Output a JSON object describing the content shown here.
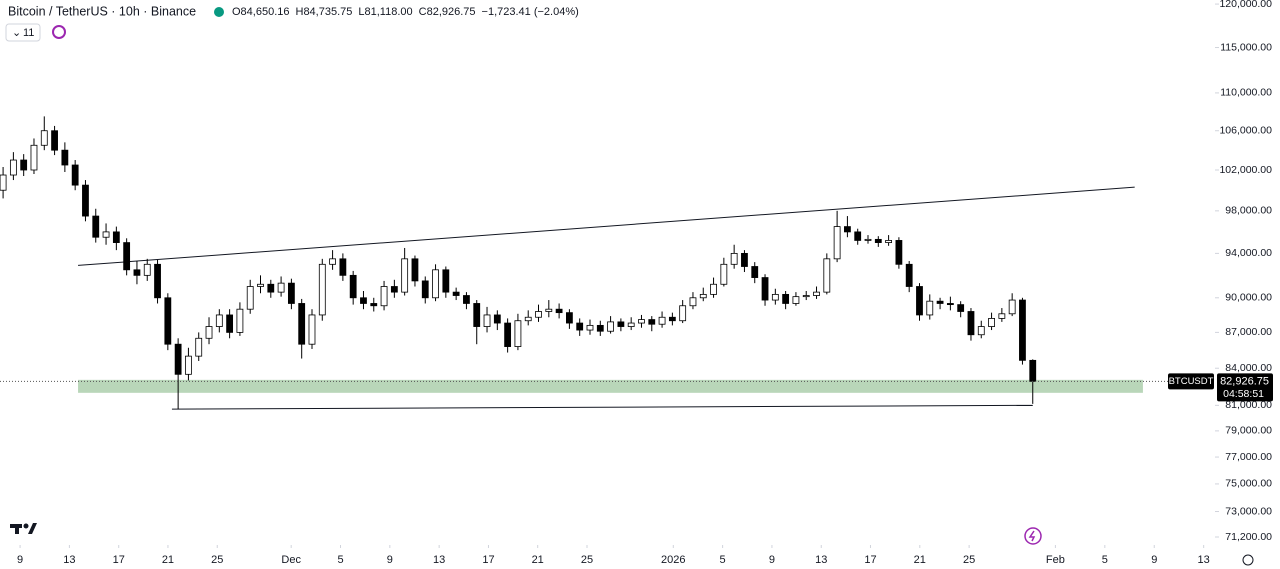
{
  "chart_data": {
    "type": "candlestick",
    "title": "Bitcoin / TetherUS · 10h · Binance",
    "ohlc_text": [
      "O84,650.16",
      "H84,735.75",
      "L81,118.00",
      "C82,926.75",
      "−1,723.41 (−2.04%)"
    ],
    "indicator_count": "11",
    "log_scale": true,
    "xlim": [
      -0.3,
      117.7
    ],
    "xticks": [
      {
        "value": 1.65,
        "label": "9"
      },
      {
        "value": 6.44,
        "label": "13"
      },
      {
        "value": 11.23,
        "label": "17"
      },
      {
        "value": 16.01,
        "label": "21"
      },
      {
        "value": 20.8,
        "label": "25"
      },
      {
        "value": 27.98,
        "label": "Dec"
      },
      {
        "value": 32.77,
        "label": "5"
      },
      {
        "value": 37.56,
        "label": "9"
      },
      {
        "value": 42.35,
        "label": "13"
      },
      {
        "value": 47.14,
        "label": "17"
      },
      {
        "value": 51.92,
        "label": "21"
      },
      {
        "value": 56.71,
        "label": "25"
      },
      {
        "value": 65.09,
        "label": "2026"
      },
      {
        "value": 69.88,
        "label": "5"
      },
      {
        "value": 74.67,
        "label": "9"
      },
      {
        "value": 79.46,
        "label": "13"
      },
      {
        "value": 84.24,
        "label": "17"
      },
      {
        "value": 89.03,
        "label": "21"
      },
      {
        "value": 93.82,
        "label": "25"
      },
      {
        "value": 102.2,
        "label": "Feb"
      },
      {
        "value": 107,
        "label": "5"
      },
      {
        "value": 111.8,
        "label": "9"
      },
      {
        "value": 116.6,
        "label": "13"
      }
    ],
    "ylim": [
      70645,
      120480
    ],
    "yticks": [
      {
        "value": 120000,
        "label": "120,000.00"
      },
      {
        "value": 115000,
        "label": "115,000.00"
      },
      {
        "value": 110000,
        "label": "110,000.00"
      },
      {
        "value": 106000,
        "label": "106,000.00"
      },
      {
        "value": 102000,
        "label": "102,000.00"
      },
      {
        "value": 98000,
        "label": "98,000.00"
      },
      {
        "value": 94000,
        "label": "94,000.00"
      },
      {
        "value": 90000,
        "label": "90,000.00"
      },
      {
        "value": 87000,
        "label": "87,000.00"
      },
      {
        "value": 84000,
        "label": "84,000.00"
      },
      {
        "value": 81000,
        "label": "81,000.00"
      },
      {
        "value": 79000,
        "label": "79,000.00"
      },
      {
        "value": 77000,
        "label": "77,000.00"
      },
      {
        "value": 75000,
        "label": "75,000.00"
      },
      {
        "value": 73000,
        "label": "73,000.00"
      },
      {
        "value": 71200,
        "label": "71,200.00"
      }
    ],
    "series": [
      {
        "name": "BTCUSDT",
        "up_color": "#ffffff",
        "down_color": "#000000",
        "open": [
          100000,
          101500,
          103000,
          102000,
          104500,
          106000,
          104000,
          102500,
          100500,
          97500,
          95500,
          96000,
          95000,
          92500,
          92000,
          93000,
          90000,
          86000,
          83500,
          85000,
          86500,
          87500,
          88500,
          87000,
          89000,
          91000,
          91200,
          90500,
          91300,
          89500,
          86000,
          88500,
          93000,
          93500,
          92000,
          90000,
          89500,
          89300,
          91000,
          90500,
          93500,
          91500,
          90000,
          92500,
          90500,
          90200,
          89500,
          87500,
          88500,
          87800,
          85800,
          88000,
          88300,
          88800,
          89000,
          88700,
          87800,
          87200,
          87600,
          87100,
          87900,
          87500,
          87800,
          88100,
          87700,
          88300,
          88000,
          89300,
          90000,
          90300,
          91200,
          93000,
          94000,
          92800,
          91800,
          89800,
          90300,
          89500,
          90100,
          90200,
          90500,
          93500,
          96500,
          96000,
          95200,
          95300,
          95000,
          95200,
          93000,
          91000,
          88500,
          89700,
          89500,
          89400,
          88800,
          86800,
          87500,
          88200,
          88600,
          89800,
          84650.16
        ],
        "high": [
          102300,
          103800,
          103600,
          105200,
          107500,
          106500,
          104800,
          103000,
          101000,
          98200,
          96800,
          96500,
          95400,
          93300,
          93500,
          93400,
          90400,
          86500,
          85700,
          87000,
          88300,
          89000,
          89000,
          89600,
          91600,
          92000,
          91600,
          91900,
          91700,
          89900,
          89000,
          93500,
          94300,
          94000,
          92400,
          90600,
          90000,
          91500,
          91600,
          94500,
          93800,
          91900,
          93000,
          92800,
          90900,
          90500,
          89800,
          89200,
          88900,
          88200,
          88600,
          88900,
          89400,
          89800,
          89500,
          89000,
          88200,
          88100,
          88000,
          88400,
          88200,
          88300,
          88500,
          88400,
          88800,
          88700,
          89800,
          90500,
          90900,
          91800,
          93600,
          94800,
          94300,
          93200,
          92100,
          90800,
          90600,
          90500,
          90600,
          91000,
          94000,
          98000,
          97500,
          96300,
          95700,
          95600,
          95700,
          95500,
          93300,
          91300,
          90300,
          90000,
          90100,
          89700,
          89100,
          88000,
          88700,
          89100,
          90400,
          90000,
          84735.75
        ],
        "low": [
          99200,
          101000,
          101400,
          101600,
          104000,
          103500,
          101800,
          100000,
          97000,
          95000,
          94800,
          94300,
          92000,
          91200,
          91500,
          89500,
          85500,
          80700,
          83000,
          84600,
          86000,
          87000,
          86500,
          86700,
          88600,
          90400,
          90000,
          90100,
          89000,
          84800,
          85600,
          88000,
          92500,
          91500,
          89400,
          89000,
          88800,
          88900,
          90000,
          90200,
          91000,
          89500,
          89700,
          90000,
          89800,
          89000,
          86000,
          87000,
          87200,
          85300,
          85500,
          87600,
          87900,
          88300,
          88200,
          87300,
          86700,
          86800,
          86700,
          86900,
          87100,
          87200,
          87400,
          87100,
          87400,
          87600,
          87800,
          89000,
          89700,
          90000,
          91000,
          92600,
          92300,
          91300,
          89300,
          89400,
          89000,
          89300,
          89800,
          89900,
          90300,
          93200,
          95500,
          94800,
          94900,
          94600,
          94700,
          92600,
          90500,
          88000,
          88100,
          89000,
          88900,
          88300,
          86300,
          86500,
          87200,
          87900,
          88400,
          84300,
          81118
        ],
        "close": [
          101500,
          103000,
          102000,
          104500,
          106000,
          104000,
          102500,
          100500,
          97500,
          95500,
          96000,
          95000,
          92500,
          92000,
          93000,
          90000,
          86000,
          83500,
          85000,
          86500,
          87500,
          88500,
          87000,
          89000,
          91000,
          91200,
          90500,
          91300,
          89500,
          86000,
          88500,
          93000,
          93500,
          92000,
          90000,
          89500,
          89300,
          91000,
          90500,
          93500,
          91500,
          90000,
          92500,
          90500,
          90200,
          89500,
          87500,
          88500,
          87800,
          85800,
          88000,
          88300,
          88800,
          89000,
          88700,
          87800,
          87200,
          87600,
          87100,
          87900,
          87500,
          87800,
          88100,
          87700,
          88300,
          88000,
          89300,
          90000,
          90300,
          91200,
          93000,
          94000,
          92800,
          91800,
          89800,
          90300,
          89500,
          90100,
          90200,
          90500,
          93500,
          96500,
          96000,
          95200,
          95300,
          95000,
          95200,
          93000,
          91000,
          88500,
          89700,
          89500,
          89400,
          88800,
          86800,
          87500,
          88200,
          88600,
          89800,
          84650.16,
          82926.75
        ]
      }
    ],
    "trendlines": [
      {
        "x": [
          7.28,
          109.9
        ],
        "y": [
          92900,
          100300
        ],
        "color": "#131722"
      },
      {
        "x": [
          16.4,
          100
        ],
        "y": [
          80700,
          81000
        ],
        "color": "#131722"
      }
    ],
    "zone": {
      "x": [
        7.28,
        110.7
      ],
      "y": [
        82000,
        83050
      ],
      "color": "#b9d6b9"
    },
    "price_tag": {
      "symbol": "BTCUSDT",
      "label": "82,926.75",
      "timer": "04:58:51"
    }
  }
}
